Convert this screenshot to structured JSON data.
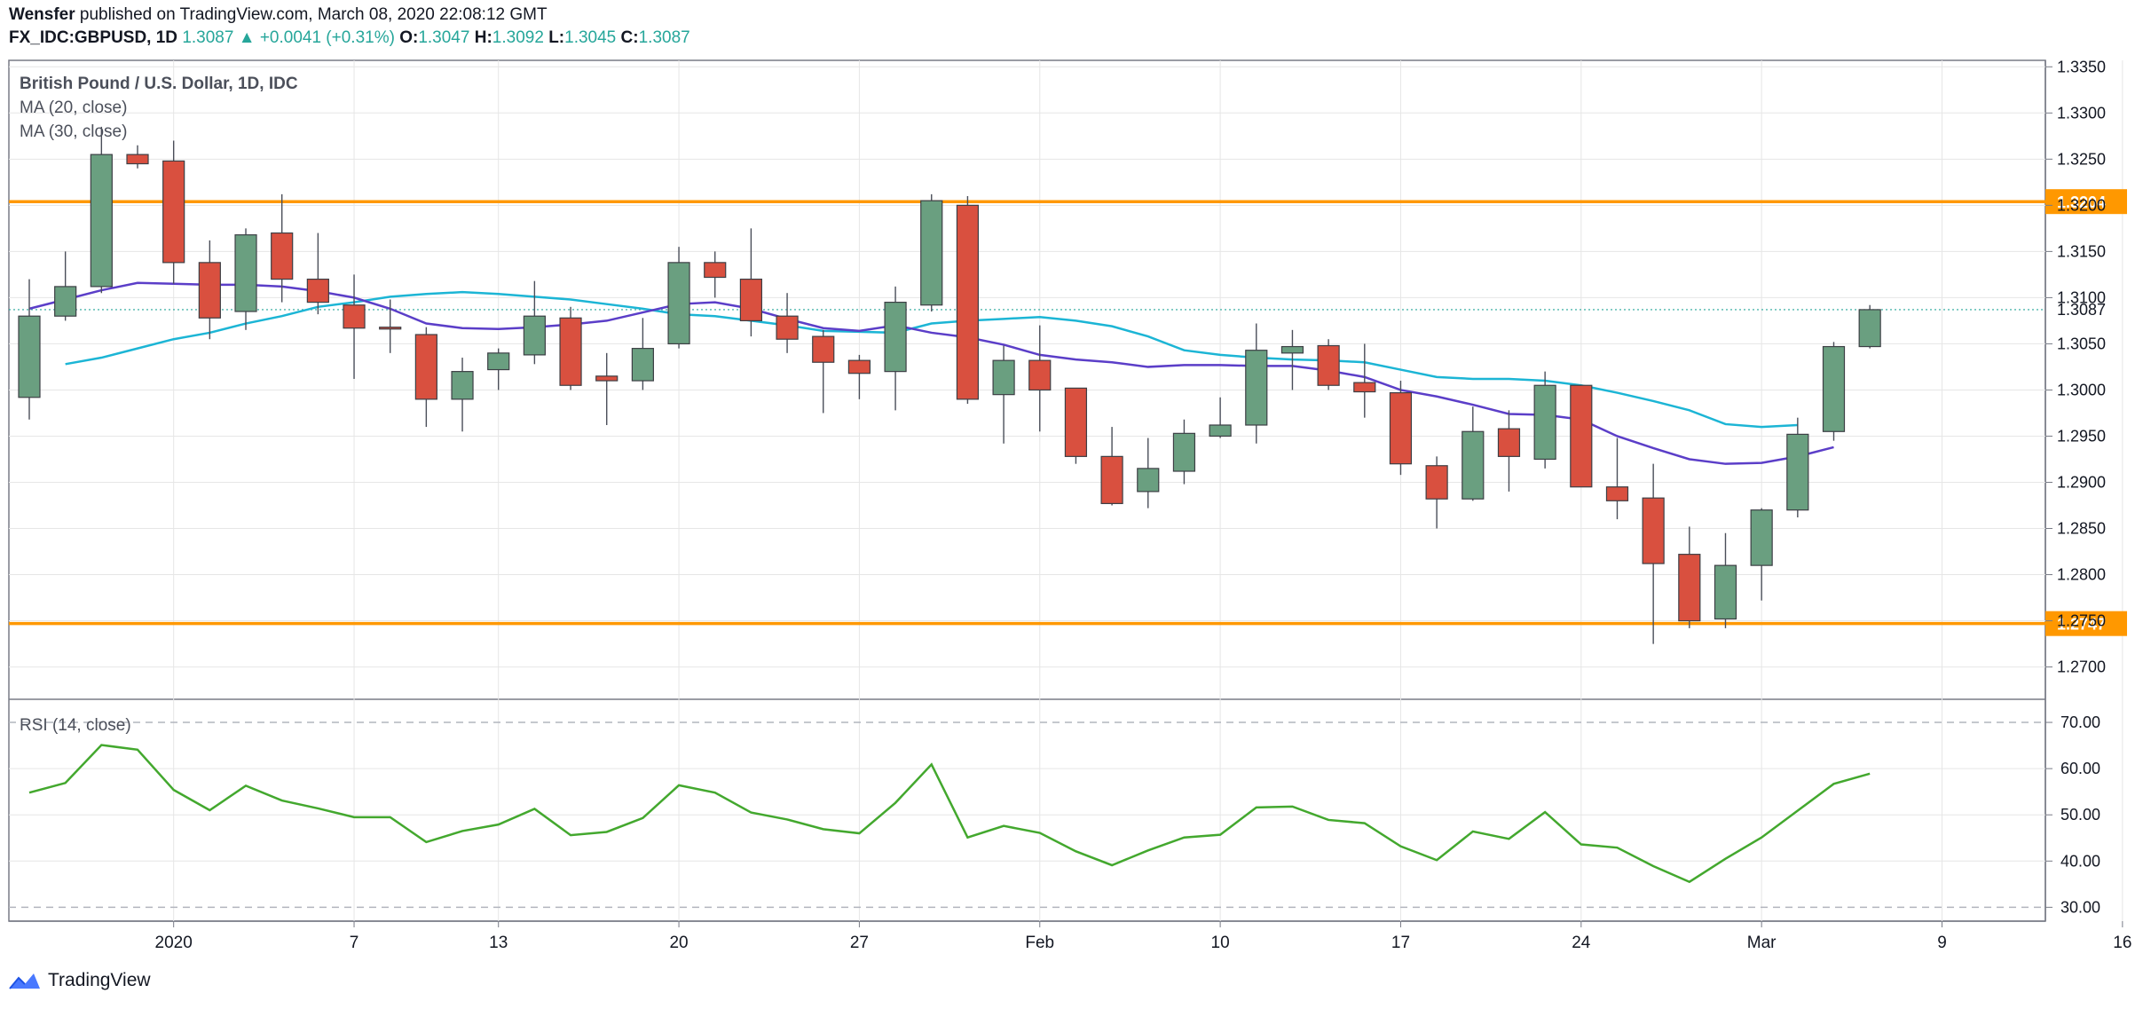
{
  "header": {
    "publisher": "Wensfer",
    "published_text": "published on TradingView.com, March 08, 2020 22:08:12 GMT",
    "symbol": "FX_IDC:GBPUSD, 1D",
    "last": "1.3087",
    "change": "+0.0041 (+0.31%)",
    "o_label": "O:",
    "o": "1.3047",
    "h_label": "H:",
    "h": "1.3092",
    "l_label": "L:",
    "l": "1.3045",
    "c_label": "C:",
    "c": "1.3087"
  },
  "legend": {
    "title": "British Pound / U.S. Dollar, 1D, IDC",
    "ma20": "MA (20, close)",
    "ma30": "MA (30, close)",
    "rsi": "RSI (14, close)"
  },
  "footer": {
    "brand": "TradingView"
  },
  "colors": {
    "up": "#6a9f80",
    "down": "#d9503f",
    "ma20": "#5b3ec8",
    "ma30": "#1cb5d5",
    "rsi": "#43a82e",
    "level": "#ff9800",
    "grid": "#e6e6e6",
    "text": "#131722"
  },
  "chart_data": {
    "type": "candlestick",
    "price_axis": {
      "ylim": [
        1.2665,
        1.3357
      ],
      "ticks": [
        "1.3350",
        "1.3300",
        "1.3250",
        "1.3200",
        "1.3150",
        "1.3100",
        "1.3050",
        "1.3000",
        "1.2950",
        "1.2900",
        "1.2850",
        "1.2800",
        "1.2750",
        "1.2700"
      ]
    },
    "rsi_axis": {
      "ylim": [
        27,
        75
      ],
      "ticks": [
        "70.00",
        "60.00",
        "50.00",
        "40.00",
        "30.00"
      ],
      "bands": [
        70,
        30
      ]
    },
    "x_ticks": [
      {
        "label": "2020",
        "x": 4
      },
      {
        "label": "7",
        "x": 9
      },
      {
        "label": "13",
        "x": 13
      },
      {
        "label": "20",
        "x": 18
      },
      {
        "label": "27",
        "x": 23
      },
      {
        "label": "Feb",
        "x": 28
      },
      {
        "label": "10",
        "x": 33
      },
      {
        "label": "17",
        "x": 38
      },
      {
        "label": "24",
        "x": 43
      },
      {
        "label": "Mar",
        "x": 48
      },
      {
        "label": "9",
        "x": 53
      },
      {
        "label": "16",
        "x": 58
      }
    ],
    "levels": [
      {
        "value": 1.3204,
        "label": "1.3204"
      },
      {
        "value": 1.2747,
        "label": "1.2747"
      }
    ],
    "last_price": 1.3087,
    "last_label": "1.3087",
    "candles": [
      {
        "o": 1.2992,
        "h": 1.312,
        "l": 1.2968,
        "c": 1.308
      },
      {
        "o": 1.308,
        "h": 1.315,
        "l": 1.3075,
        "c": 1.3112
      },
      {
        "o": 1.3112,
        "h": 1.3285,
        "l": 1.3105,
        "c": 1.3255
      },
      {
        "o": 1.3255,
        "h": 1.3265,
        "l": 1.324,
        "c": 1.3245
      },
      {
        "o": 1.3248,
        "h": 1.327,
        "l": 1.3115,
        "c": 1.3138
      },
      {
        "o": 1.3138,
        "h": 1.3162,
        "l": 1.3055,
        "c": 1.3078
      },
      {
        "o": 1.3085,
        "h": 1.3175,
        "l": 1.3065,
        "c": 1.3168
      },
      {
        "o": 1.317,
        "h": 1.3212,
        "l": 1.3095,
        "c": 1.312
      },
      {
        "o": 1.312,
        "h": 1.317,
        "l": 1.3082,
        "c": 1.3095
      },
      {
        "o": 1.3092,
        "h": 1.3125,
        "l": 1.3012,
        "c": 1.3067
      },
      {
        "o": 1.3068,
        "h": 1.3098,
        "l": 1.304,
        "c": 1.3066
      },
      {
        "o": 1.306,
        "h": 1.3068,
        "l": 1.296,
        "c": 1.299
      },
      {
        "o": 1.299,
        "h": 1.3035,
        "l": 1.2955,
        "c": 1.302
      },
      {
        "o": 1.3022,
        "h": 1.3045,
        "l": 1.3,
        "c": 1.304
      },
      {
        "o": 1.3038,
        "h": 1.3118,
        "l": 1.3028,
        "c": 1.308
      },
      {
        "o": 1.3078,
        "h": 1.309,
        "l": 1.3,
        "c": 1.3005
      },
      {
        "o": 1.3015,
        "h": 1.304,
        "l": 1.2962,
        "c": 1.301
      },
      {
        "o": 1.301,
        "h": 1.3078,
        "l": 1.3,
        "c": 1.3045
      },
      {
        "o": 1.305,
        "h": 1.3155,
        "l": 1.3045,
        "c": 1.3138
      },
      {
        "o": 1.3138,
        "h": 1.315,
        "l": 1.31,
        "c": 1.3122
      },
      {
        "o": 1.312,
        "h": 1.3175,
        "l": 1.3058,
        "c": 1.3075
      },
      {
        "o": 1.308,
        "h": 1.3105,
        "l": 1.304,
        "c": 1.3055
      },
      {
        "o": 1.3058,
        "h": 1.3065,
        "l": 1.2975,
        "c": 1.303
      },
      {
        "o": 1.3032,
        "h": 1.3038,
        "l": 1.299,
        "c": 1.3018
      },
      {
        "o": 1.302,
        "h": 1.3112,
        "l": 1.2978,
        "c": 1.3095
      },
      {
        "o": 1.3092,
        "h": 1.3212,
        "l": 1.3085,
        "c": 1.3205
      },
      {
        "o": 1.32,
        "h": 1.321,
        "l": 1.2985,
        "c": 1.299
      },
      {
        "o": 1.2995,
        "h": 1.3048,
        "l": 1.2942,
        "c": 1.3032
      },
      {
        "o": 1.3032,
        "h": 1.307,
        "l": 1.2955,
        "c": 1.3
      },
      {
        "o": 1.3002,
        "h": 1.3,
        "l": 1.292,
        "c": 1.2928
      },
      {
        "o": 1.2928,
        "h": 1.296,
        "l": 1.2875,
        "c": 1.2877
      },
      {
        "o": 1.289,
        "h": 1.2948,
        "l": 1.2872,
        "c": 1.2915
      },
      {
        "o": 1.2912,
        "h": 1.2968,
        "l": 1.2898,
        "c": 1.2953
      },
      {
        "o": 1.295,
        "h": 1.2992,
        "l": 1.2948,
        "c": 1.2962
      },
      {
        "o": 1.2962,
        "h": 1.3072,
        "l": 1.2942,
        "c": 1.3043
      },
      {
        "o": 1.304,
        "h": 1.3065,
        "l": 1.3,
        "c": 1.3047
      },
      {
        "o": 1.3048,
        "h": 1.3055,
        "l": 1.3,
        "c": 1.3005
      },
      {
        "o": 1.3008,
        "h": 1.305,
        "l": 1.297,
        "c": 1.2998
      },
      {
        "o": 1.2997,
        "h": 1.301,
        "l": 1.2908,
        "c": 1.292
      },
      {
        "o": 1.2918,
        "h": 1.2928,
        "l": 1.285,
        "c": 1.2882
      },
      {
        "o": 1.2882,
        "h": 1.2982,
        "l": 1.288,
        "c": 1.2955
      },
      {
        "o": 1.2958,
        "h": 1.2978,
        "l": 1.289,
        "c": 1.2928
      },
      {
        "o": 1.2925,
        "h": 1.302,
        "l": 1.2915,
        "c": 1.3005
      },
      {
        "o": 1.3005,
        "h": 1.3005,
        "l": 1.2895,
        "c": 1.2895
      },
      {
        "o": 1.2895,
        "h": 1.2948,
        "l": 1.286,
        "c": 1.288
      },
      {
        "o": 1.2883,
        "h": 1.292,
        "l": 1.2725,
        "c": 1.2812
      },
      {
        "o": 1.2822,
        "h": 1.2852,
        "l": 1.2742,
        "c": 1.275
      },
      {
        "o": 1.2752,
        "h": 1.2845,
        "l": 1.2742,
        "c": 1.281
      },
      {
        "o": 1.281,
        "h": 1.2872,
        "l": 1.2772,
        "c": 1.287
      },
      {
        "o": 1.287,
        "h": 1.297,
        "l": 1.2862,
        "c": 1.2952
      },
      {
        "o": 1.2955,
        "h": 1.3052,
        "l": 1.2945,
        "c": 1.3047
      },
      {
        "o": 1.3047,
        "h": 1.3092,
        "l": 1.3045,
        "c": 1.3087
      }
    ],
    "ma20": [
      [
        1,
        1.3028
      ],
      [
        2,
        1.3035
      ],
      [
        3,
        1.3045
      ],
      [
        4,
        1.3055
      ],
      [
        5,
        1.3062
      ],
      [
        6,
        1.3072
      ],
      [
        7,
        1.308
      ],
      [
        8,
        1.309
      ],
      [
        9,
        1.3095
      ],
      [
        10,
        1.3101
      ],
      [
        11,
        1.3104
      ],
      [
        12,
        1.3106
      ],
      [
        13,
        1.3104
      ],
      [
        14,
        1.3101
      ],
      [
        15,
        1.3098
      ],
      [
        16,
        1.3093
      ],
      [
        17,
        1.3088
      ],
      [
        18,
        1.3082
      ],
      [
        19,
        1.308
      ],
      [
        20,
        1.3075
      ],
      [
        21,
        1.307
      ],
      [
        22,
        1.3064
      ],
      [
        23,
        1.3063
      ],
      [
        24,
        1.3062
      ],
      [
        25,
        1.3072
      ],
      [
        26,
        1.3075
      ],
      [
        27,
        1.3077
      ],
      [
        28,
        1.3079
      ],
      [
        29,
        1.3075
      ],
      [
        30,
        1.3069
      ],
      [
        31,
        1.3058
      ],
      [
        32,
        1.3043
      ],
      [
        33,
        1.3038
      ],
      [
        34,
        1.3035
      ],
      [
        35,
        1.3033
      ],
      [
        36,
        1.3032
      ],
      [
        37,
        1.303
      ],
      [
        38,
        1.3022
      ],
      [
        39,
        1.3014
      ],
      [
        40,
        1.3012
      ],
      [
        41,
        1.3012
      ],
      [
        42,
        1.301
      ],
      [
        43,
        1.3005
      ],
      [
        44,
        1.2997
      ],
      [
        45,
        1.2988
      ],
      [
        46,
        1.2978
      ],
      [
        47,
        1.2963
      ],
      [
        48,
        1.296
      ],
      [
        49,
        1.2962
      ]
    ],
    "ma30": [
      [
        0,
        1.3088
      ],
      [
        1,
        1.3098
      ],
      [
        2,
        1.3108
      ],
      [
        3,
        1.3116
      ],
      [
        4,
        1.3115
      ],
      [
        5,
        1.3114
      ],
      [
        6,
        1.3114
      ],
      [
        7,
        1.3112
      ],
      [
        8,
        1.3107
      ],
      [
        9,
        1.31
      ],
      [
        10,
        1.3088
      ],
      [
        11,
        1.3072
      ],
      [
        12,
        1.3067
      ],
      [
        13,
        1.3066
      ],
      [
        14,
        1.3068
      ],
      [
        15,
        1.3071
      ],
      [
        16,
        1.3075
      ],
      [
        17,
        1.3084
      ],
      [
        18,
        1.3093
      ],
      [
        19,
        1.3095
      ],
      [
        20,
        1.3088
      ],
      [
        21,
        1.3077
      ],
      [
        22,
        1.3067
      ],
      [
        23,
        1.3064
      ],
      [
        24,
        1.307
      ],
      [
        25,
        1.3062
      ],
      [
        26,
        1.3057
      ],
      [
        27,
        1.3049
      ],
      [
        28,
        1.3038
      ],
      [
        29,
        1.3033
      ],
      [
        30,
        1.303
      ],
      [
        31,
        1.3025
      ],
      [
        32,
        1.3027
      ],
      [
        33,
        1.3027
      ],
      [
        34,
        1.3026
      ],
      [
        35,
        1.3026
      ],
      [
        36,
        1.3021
      ],
      [
        37,
        1.3014
      ],
      [
        38,
        1.3
      ],
      [
        39,
        1.2993
      ],
      [
        40,
        1.2984
      ],
      [
        41,
        1.2974
      ],
      [
        42,
        1.2973
      ],
      [
        43,
        1.2968
      ],
      [
        44,
        1.295
      ],
      [
        45,
        1.2937
      ],
      [
        46,
        1.2925
      ],
      [
        47,
        1.292
      ],
      [
        48,
        1.2921
      ],
      [
        49,
        1.2928
      ],
      [
        50,
        1.2938
      ]
    ],
    "rsi": [
      54.8,
      56.9,
      65.1,
      64.1,
      55.4,
      51.0,
      56.3,
      53.1,
      51.4,
      49.5,
      49.5,
      44.1,
      46.5,
      47.9,
      51.3,
      45.6,
      46.3,
      49.3,
      56.4,
      54.8,
      50.5,
      49.0,
      46.9,
      46.0,
      52.6,
      60.9,
      45.1,
      47.6,
      46.1,
      42.1,
      39.1,
      42.3,
      45.1,
      45.7,
      51.6,
      51.8,
      48.9,
      48.2,
      43.2,
      40.2,
      46.4,
      44.8,
      50.6,
      43.6,
      42.9,
      38.9,
      35.5,
      40.5,
      45.1,
      50.9,
      56.7,
      58.9
    ]
  }
}
